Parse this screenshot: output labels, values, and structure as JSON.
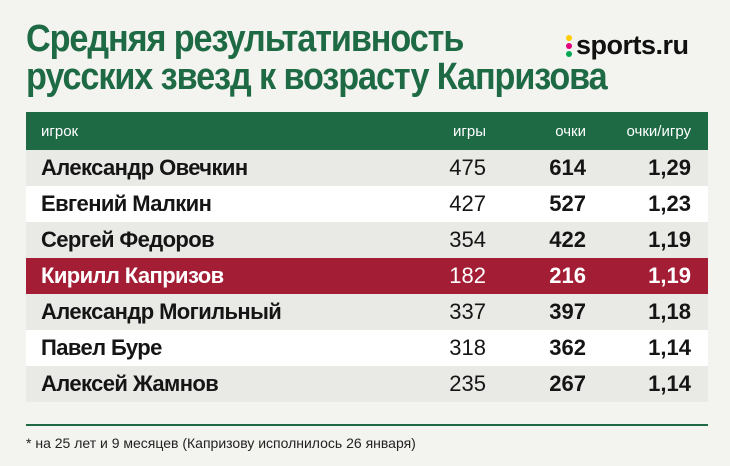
{
  "title": {
    "line1": "Средняя результативность",
    "line2": "русских звезд к возрасту Капризова"
  },
  "logo": {
    "text": "sports.ru",
    "dot_colors": [
      "#ffcc00",
      "#e5007e",
      "#00a651"
    ]
  },
  "colors": {
    "accent": "#1d6a45",
    "highlight": "#a31d35"
  },
  "table": {
    "headers": {
      "player": "игрок",
      "games": "игры",
      "points": "очки",
      "ppg": "очки/игру"
    },
    "rows": [
      {
        "player": "Александр Овечкин",
        "games": "475",
        "points": "614",
        "ppg": "1,29"
      },
      {
        "player": "Евгений Малкин",
        "games": "427",
        "points": "527",
        "ppg": "1,23"
      },
      {
        "player": "Сергей Федоров",
        "games": "354",
        "points": "422",
        "ppg": "1,19"
      },
      {
        "player": "Кирилл Капризов",
        "games": "182",
        "points": "216",
        "ppg": "1,19"
      },
      {
        "player": "Александр Могильный",
        "games": "337",
        "points": "397",
        "ppg": "1,18"
      },
      {
        "player": "Павел Буре",
        "games": "318",
        "points": "362",
        "ppg": "1,14"
      },
      {
        "player": "Алексей Жамнов",
        "games": "235",
        "points": "267",
        "ppg": "1,14"
      }
    ]
  },
  "footnote": "* на 25 лет и 9 месяцев (Капризову исполнилось 26 января)"
}
